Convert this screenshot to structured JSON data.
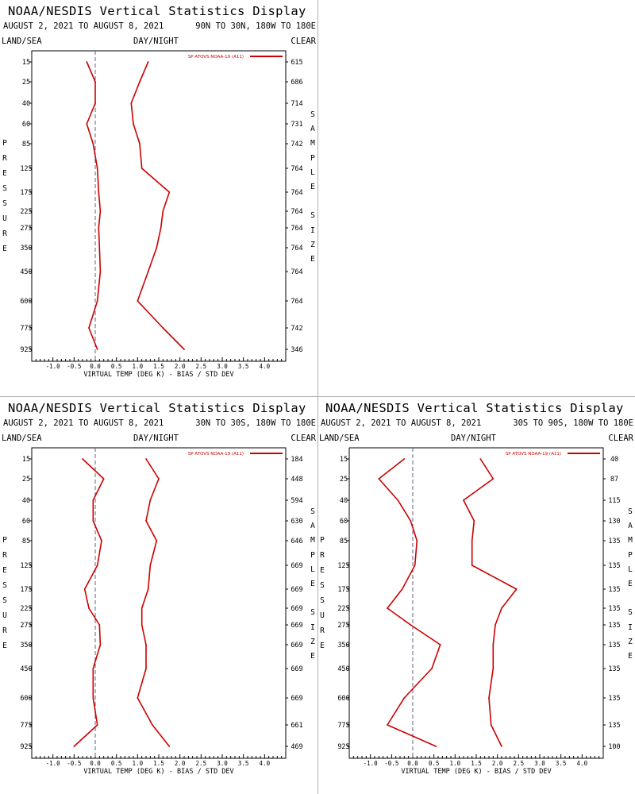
{
  "colors": {
    "line": "#cc0000",
    "axis": "#000000",
    "zero_line": "#606080",
    "divider": "#b0b0b0"
  },
  "shared": {
    "title": "NOAA/NESDIS Vertical Statistics Display",
    "date_range": "AUGUST 2, 2021 TO AUGUST 8, 2021",
    "land_sea": "LAND/SEA",
    "day_night": "DAY/NIGHT",
    "clear": "CLEAR",
    "xlabel": "VIRTUAL TEMP (DEG K) - BIAS / STD DEV",
    "left_axis_label": "PRESSURE",
    "right_axis_label": "SAMPLE SIZE",
    "legend": "SP ATOVS NOAA-19 (A11)"
  },
  "chart_data": [
    {
      "type": "line",
      "region": "90N TO 30N, 180W TO 180E",
      "pressure_levels": [
        15,
        25,
        40,
        60,
        85,
        125,
        175,
        225,
        275,
        350,
        450,
        600,
        775,
        925
      ],
      "xlim": [
        -1.5,
        4.5
      ],
      "x_ticks": [
        "-1.0",
        "-0.5",
        "0.0",
        "0.5",
        "1.0",
        "1.5",
        "2.0",
        "2.5",
        "3.0",
        "3.5",
        "4.0"
      ],
      "series": [
        {
          "name": "bias",
          "values": [
            -0.2,
            0.0,
            0.0,
            -0.2,
            -0.05,
            0.05,
            0.08,
            0.12,
            0.08,
            0.1,
            0.12,
            0.05,
            -0.15,
            0.05
          ]
        },
        {
          "name": "std_dev",
          "values": [
            1.25,
            1.05,
            0.85,
            0.9,
            1.05,
            1.1,
            1.75,
            1.6,
            1.55,
            1.45,
            1.25,
            1.0,
            1.6,
            2.1
          ]
        }
      ],
      "sample_sizes": [
        "615",
        "686",
        "714",
        "731",
        "742",
        "764",
        "764",
        "764",
        "764",
        "764",
        "764",
        "764",
        "742",
        "346"
      ]
    },
    {
      "type": "line",
      "region": "30N TO 30S, 180W TO 180E",
      "pressure_levels": [
        15,
        25,
        40,
        60,
        85,
        125,
        175,
        225,
        275,
        350,
        450,
        600,
        775,
        925
      ],
      "xlim": [
        -1.5,
        4.5
      ],
      "x_ticks": [
        "-1.0",
        "-0.5",
        "0.0",
        "0.5",
        "1.0",
        "1.5",
        "2.0",
        "2.5",
        "3.0",
        "3.5",
        "4.0"
      ],
      "series": [
        {
          "name": "bias",
          "values": [
            -0.3,
            0.2,
            -0.05,
            -0.05,
            0.15,
            0.05,
            -0.25,
            -0.15,
            0.1,
            0.12,
            -0.05,
            -0.05,
            0.05,
            -0.5
          ]
        },
        {
          "name": "std_dev",
          "values": [
            1.2,
            1.5,
            1.3,
            1.2,
            1.45,
            1.3,
            1.25,
            1.1,
            1.1,
            1.2,
            1.2,
            1.0,
            1.35,
            1.75
          ]
        }
      ],
      "sample_sizes": [
        "184",
        "448",
        "594",
        "630",
        "646",
        "669",
        "669",
        "669",
        "669",
        "669",
        "669",
        "669",
        "661",
        "469"
      ]
    },
    {
      "type": "line",
      "region": "30S TO 90S, 180W TO 180E",
      "pressure_levels": [
        15,
        25,
        40,
        60,
        85,
        125,
        175,
        225,
        275,
        350,
        450,
        600,
        775,
        925
      ],
      "xlim": [
        -1.5,
        4.5
      ],
      "x_ticks": [
        "-1.0",
        "-0.5",
        "0.0",
        "0.5",
        "1.0",
        "1.5",
        "2.0",
        "2.5",
        "3.0",
        "3.5",
        "4.0"
      ],
      "series": [
        {
          "name": "bias",
          "values": [
            -0.2,
            -0.8,
            -0.35,
            -0.05,
            0.1,
            0.05,
            -0.25,
            -0.6,
            -0.05,
            0.65,
            0.45,
            -0.2,
            -0.6,
            0.55
          ]
        },
        {
          "name": "std_dev",
          "values": [
            1.6,
            1.9,
            1.2,
            1.45,
            1.4,
            1.4,
            2.45,
            2.1,
            1.95,
            1.9,
            1.9,
            1.8,
            1.85,
            2.1
          ]
        }
      ],
      "sample_sizes": [
        "40",
        "87",
        "115",
        "130",
        "135",
        "135",
        "135",
        "135",
        "135",
        "135",
        "135",
        "135",
        "135",
        "100"
      ]
    }
  ]
}
